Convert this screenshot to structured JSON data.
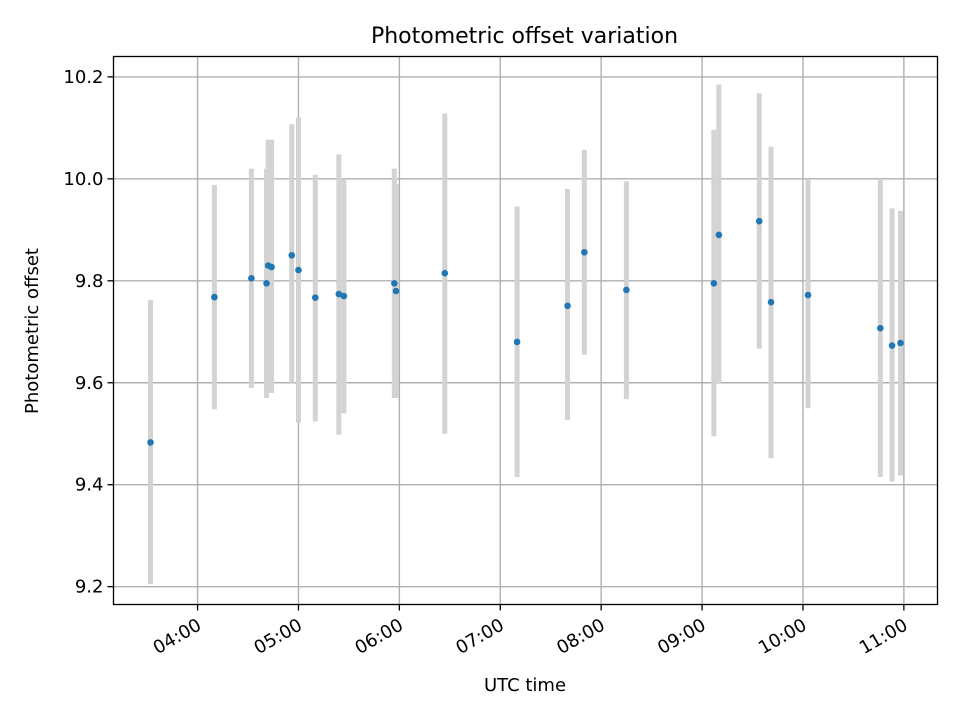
{
  "chart_data": {
    "type": "scatter",
    "title": "Photometric offset variation",
    "xlabel": "UTC time",
    "ylabel": "Photometric offset",
    "x_tick_labels": [
      "04:00",
      "05:00",
      "06:00",
      "07:00",
      "08:00",
      "09:00",
      "10:00",
      "11:00"
    ],
    "x_ticks": [
      "04:00",
      "05:00",
      "06:00",
      "07:00",
      "08:00",
      "09:00",
      "10:00",
      "11:00"
    ],
    "xlim": [
      "03:10",
      "11:20"
    ],
    "y_tick_labels": [
      "9.2",
      "9.4",
      "9.6",
      "9.8",
      "10.0",
      "10.2"
    ],
    "y_ticks": [
      9.2,
      9.4,
      9.6,
      9.8,
      10.0,
      10.2
    ],
    "ylim": [
      9.165,
      10.24
    ],
    "grid": true,
    "colors": {
      "points": "#1f77b4",
      "error_bars": "#d3d3d3"
    },
    "points": [
      {
        "x": "03:32",
        "y": 9.483,
        "err_low": 9.205,
        "err_high": 9.762
      },
      {
        "x": "04:10",
        "y": 9.768,
        "err_low": 9.548,
        "err_high": 9.988
      },
      {
        "x": "04:32",
        "y": 9.805,
        "err_low": 9.59,
        "err_high": 10.02
      },
      {
        "x": "04:41",
        "y": 9.795,
        "err_low": 9.57,
        "err_high": 10.02
      },
      {
        "x": "04:42",
        "y": 9.83,
        "err_low": 9.58,
        "err_high": 10.077
      },
      {
        "x": "04:44",
        "y": 9.827,
        "err_low": 9.58,
        "err_high": 10.077
      },
      {
        "x": "04:56",
        "y": 9.85,
        "err_low": 9.6,
        "err_high": 10.107
      },
      {
        "x": "05:00",
        "y": 9.821,
        "err_low": 9.522,
        "err_high": 10.12
      },
      {
        "x": "05:10",
        "y": 9.767,
        "err_low": 9.524,
        "err_high": 10.008
      },
      {
        "x": "05:24",
        "y": 9.774,
        "err_low": 9.498,
        "err_high": 10.048
      },
      {
        "x": "05:27",
        "y": 9.77,
        "err_low": 9.54,
        "err_high": 10.0
      },
      {
        "x": "05:57",
        "y": 9.795,
        "err_low": 9.57,
        "err_high": 10.02
      },
      {
        "x": "05:58",
        "y": 9.78,
        "err_low": 9.57,
        "err_high": 9.99
      },
      {
        "x": "06:27",
        "y": 9.815,
        "err_low": 9.5,
        "err_high": 10.128
      },
      {
        "x": "07:10",
        "y": 9.68,
        "err_low": 9.415,
        "err_high": 9.946
      },
      {
        "x": "07:40",
        "y": 9.751,
        "err_low": 9.527,
        "err_high": 9.98
      },
      {
        "x": "07:50",
        "y": 9.856,
        "err_low": 9.655,
        "err_high": 10.057
      },
      {
        "x": "08:15",
        "y": 9.782,
        "err_low": 9.568,
        "err_high": 9.995
      },
      {
        "x": "09:07",
        "y": 9.795,
        "err_low": 9.495,
        "err_high": 10.096
      },
      {
        "x": "09:10",
        "y": 9.89,
        "err_low": 9.598,
        "err_high": 10.185
      },
      {
        "x": "09:34",
        "y": 9.917,
        "err_low": 9.667,
        "err_high": 10.168
      },
      {
        "x": "09:41",
        "y": 9.758,
        "err_low": 9.452,
        "err_high": 10.063
      },
      {
        "x": "10:03",
        "y": 9.772,
        "err_low": 9.55,
        "err_high": 9.998
      },
      {
        "x": "10:46",
        "y": 9.707,
        "err_low": 9.415,
        "err_high": 10.0
      },
      {
        "x": "10:53",
        "y": 9.673,
        "err_low": 9.406,
        "err_high": 9.942
      },
      {
        "x": "10:58",
        "y": 9.678,
        "err_low": 9.418,
        "err_high": 9.937
      }
    ]
  }
}
